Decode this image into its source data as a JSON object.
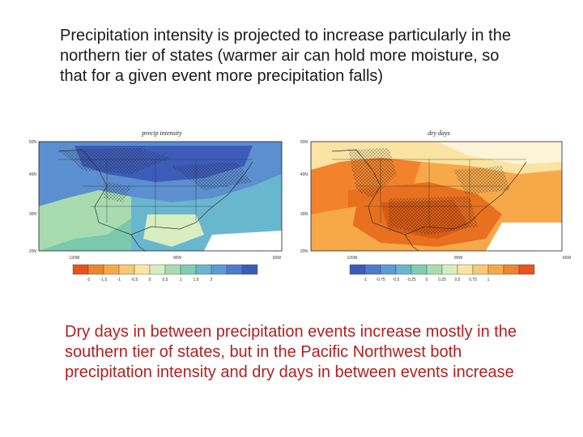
{
  "top_caption": "Precipitation intensity is projected to increase particularly in the northern tier of states (warmer air can hold more moisture, so that for a given event more precipitation falls)",
  "bottom_caption": "Dry days in between precipitation events increase mostly in the southern tier of states, but in the Pacific Northwest both precipitation intensity and dry days in between events increase",
  "maps": [
    {
      "title": "precip intensity",
      "lat_labels": [
        "50N",
        "40N",
        "30N",
        "20N"
      ],
      "lon_labels": [
        "120W",
        "90W",
        "60W"
      ],
      "colorbar_ticks": [
        "-2",
        "-1.5",
        "-1",
        "-0.5",
        "0",
        "0.5",
        "1",
        "1.5",
        "2"
      ],
      "colorbar_colors": [
        "#e8541a",
        "#f2832c",
        "#f7a94a",
        "#f9c870",
        "#fbe3a3",
        "#d8edc0",
        "#a8dcb0",
        "#7dcfae",
        "#69b7cf",
        "#5b9bd8",
        "#4c7bcf",
        "#3d5cb9"
      ]
    },
    {
      "title": "dry days",
      "lat_labels": [
        "50N",
        "40N",
        "30N",
        "20N"
      ],
      "lon_labels": [
        "120W",
        "90W",
        "60W"
      ],
      "colorbar_ticks": [
        "-1",
        "-0.75",
        "-0.5",
        "-0.25",
        "0",
        "0.25",
        "0.5",
        "0.75",
        "1"
      ],
      "colorbar_colors": [
        "#3d5cb9",
        "#4c7bcf",
        "#5b9bd8",
        "#69b7cf",
        "#7dcfae",
        "#a8dcb0",
        "#d8edc0",
        "#fbe3a3",
        "#f9c870",
        "#f7a94a",
        "#f2832c",
        "#e8541a"
      ]
    }
  ]
}
